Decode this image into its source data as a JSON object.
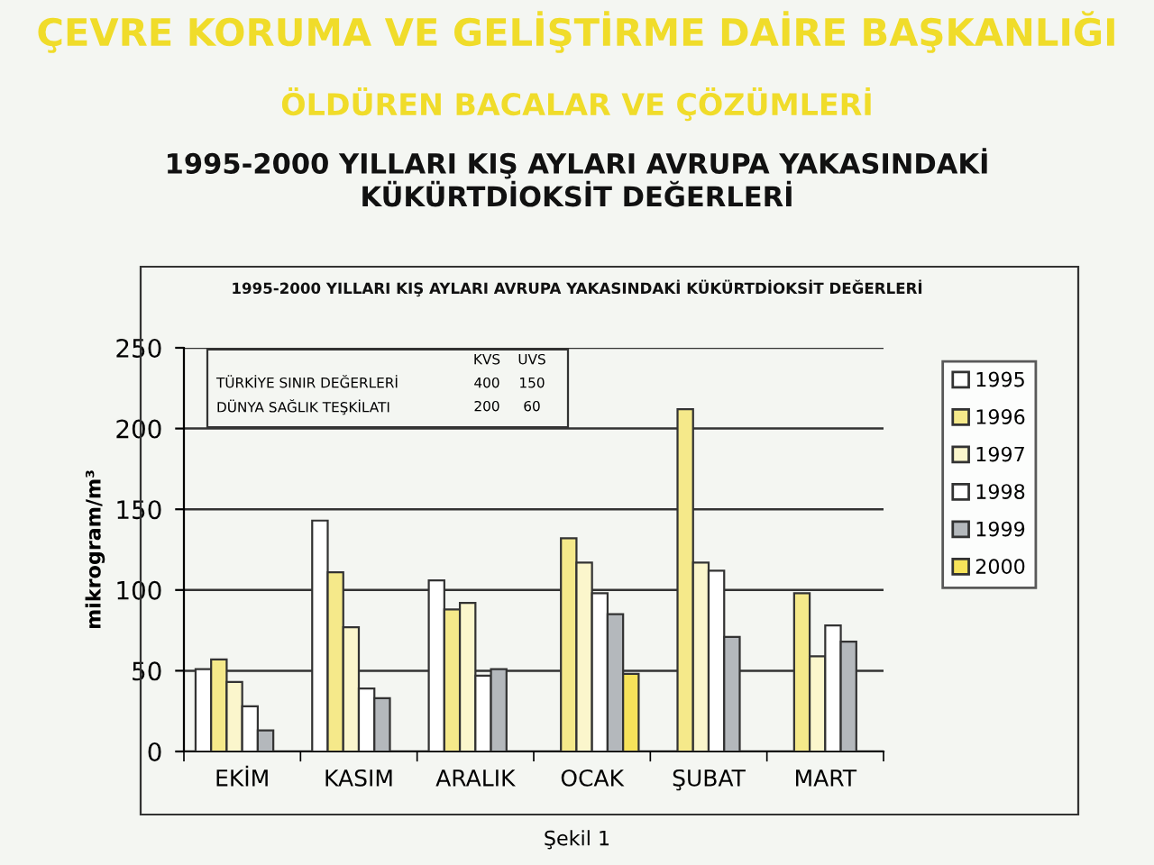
{
  "chart_data": {
    "type": "bar",
    "title": "1995-2000 YILLARI KIŞ AYLARI AVRUPA YAKASINDAKİ KÜKÜRTDİOKSİT DEĞERLERİ",
    "subtitle": "ÇEVRE KORUMA VE GELİŞTİRME DAİRE BAŞKANLIĞI",
    "annotations": [
      "ÖLDÜREN BACALAR VE ÇÖZÜMLERİ",
      "1995-2000 YILLARI KIŞ AYLARI AVRUPA YAKASINDAKİ\nKÜKÜRTDİOKSİT DEĞERLERİ",
      "KVS",
      "UVS",
      "TÜRKİYE SINIR DEĞERLERİ",
      "400",
      "150",
      "DÜNYA SAĞLIK TEŞKİLATI",
      "200",
      "60",
      "Şekil 1"
    ],
    "ylabel": "mikrogram/m³",
    "categories": [
      "EKİM",
      "KASIM",
      "ARALIK",
      "OCAK",
      "ŞUBAT",
      "MART"
    ],
    "series": [
      {
        "name": "1995",
        "color": "#ffffff",
        "values": [
          51,
          143,
          106,
          null,
          null,
          null
        ]
      },
      {
        "name": "1996",
        "color": "#f5e98a",
        "values": [
          57,
          111,
          88,
          132,
          212,
          98
        ]
      },
      {
        "name": "1997",
        "color": "#fbf6cc",
        "values": [
          43,
          77,
          92,
          117,
          117,
          59
        ]
      },
      {
        "name": "1998",
        "color": "#ffffff",
        "values": [
          28,
          39,
          47,
          98,
          112,
          78
        ]
      },
      {
        "name": "1999",
        "color": "#b4b8bc",
        "values": [
          13,
          33,
          51,
          85,
          71,
          68
        ]
      },
      {
        "name": "2000",
        "color": "#f7e35a",
        "values": [
          null,
          null,
          null,
          48,
          null,
          null
        ]
      }
    ],
    "ylim": [
      0,
      250
    ],
    "yticks": [
      0,
      50,
      100,
      150,
      200,
      250
    ],
    "grid": "y",
    "legend": "top right"
  }
}
